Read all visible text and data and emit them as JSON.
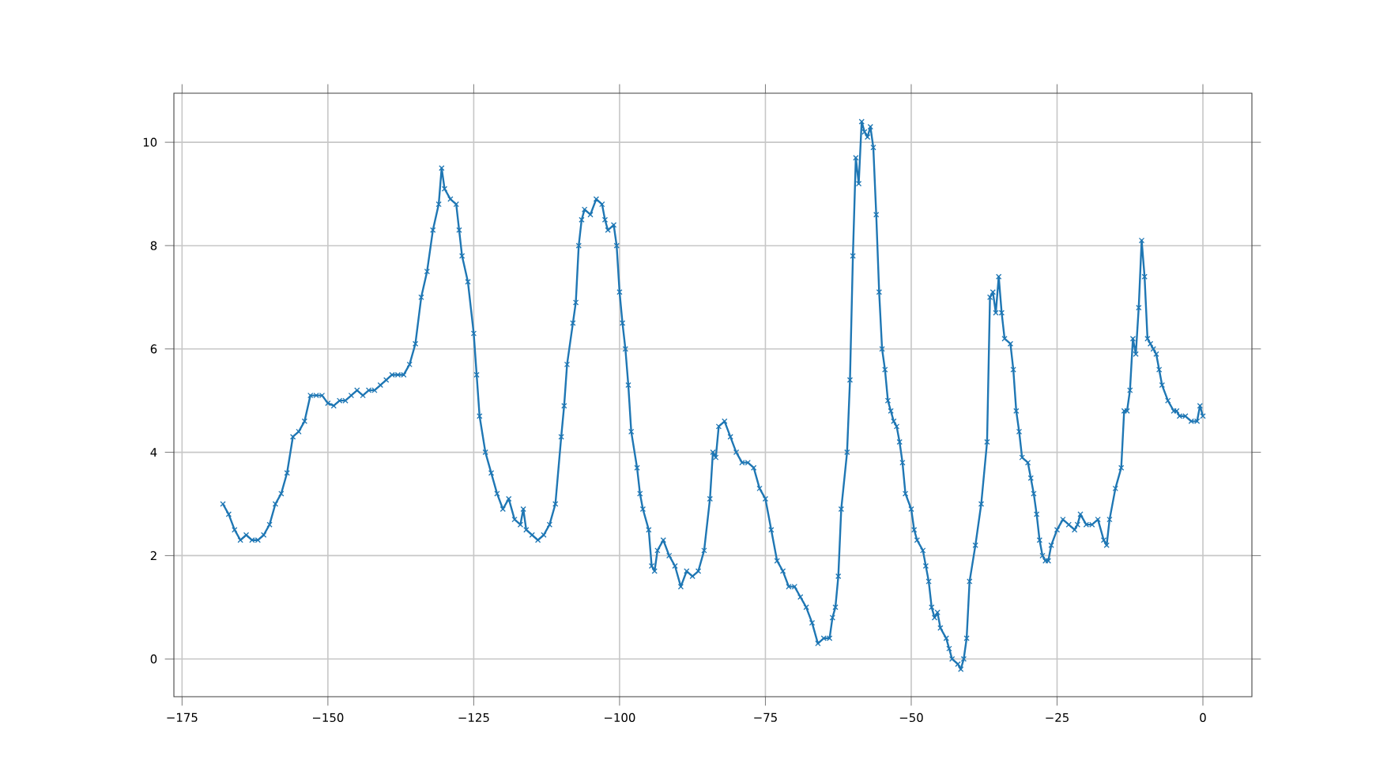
{
  "chart_data": {
    "type": "line",
    "marker": "cross",
    "grid": true,
    "line_style": "solid",
    "xlim": [
      -176.4,
      8.4
    ],
    "ylim": [
      -0.73,
      10.95
    ],
    "xticks": [
      {
        "value": -175,
        "label": "−175"
      },
      {
        "value": -150,
        "label": "−150"
      },
      {
        "value": -125,
        "label": "−125"
      },
      {
        "value": -100,
        "label": "−100"
      },
      {
        "value": -75,
        "label": "−75"
      },
      {
        "value": -50,
        "label": "−50"
      },
      {
        "value": -25,
        "label": "−25"
      },
      0
    ],
    "yticks": [
      0,
      2,
      4,
      6,
      8,
      10
    ],
    "series": [
      {
        "color": "#1f77b4",
        "x": [
          -168,
          -167,
          -166,
          -165,
          -164,
          -163,
          -162,
          -161,
          -160,
          -159,
          -158,
          -157,
          -156,
          -155,
          -154,
          -153,
          -152,
          -151,
          -150,
          -149,
          -148,
          -147,
          -146,
          -145,
          -144,
          -143,
          -142,
          -141,
          -140,
          -139,
          -138,
          -137,
          -136,
          -135,
          -134,
          -133,
          -132,
          -131,
          -130.5,
          -130,
          -129,
          -128,
          -127.5,
          -127,
          -126,
          -125,
          -124.5,
          -124,
          -123,
          -122,
          -121,
          -120,
          -119,
          -118,
          -117,
          -116.5,
          -116,
          -115,
          -114,
          -113,
          -112,
          -111,
          -110,
          -109.5,
          -109,
          -108,
          -107.5,
          -107,
          -106.5,
          -106,
          -105,
          -104,
          -103,
          -102.5,
          -102,
          -101,
          -100.5,
          -100,
          -99.5,
          -99,
          -98.5,
          -98,
          -97,
          -96.5,
          -96,
          -95,
          -94.5,
          -94,
          -93.5,
          -92.5,
          -91.5,
          -90.5,
          -89.5,
          -88.5,
          -87.5,
          -86.5,
          -85.5,
          -84.5,
          -84,
          -83.5,
          -83,
          -82,
          -81,
          -80,
          -79,
          -78,
          -77,
          -76,
          -75,
          -74,
          -73,
          -72,
          -71,
          -70,
          -69,
          -68,
          -67,
          -66,
          -65,
          -64,
          -63.5,
          -63,
          -62.5,
          -62,
          -61,
          -60.5,
          -60,
          -59.5,
          -59,
          -58.5,
          -58,
          -57.5,
          -57,
          -56.5,
          -56,
          -55.5,
          -55,
          -54.5,
          -54,
          -53.5,
          -53,
          -52.5,
          -52,
          -51.5,
          -51,
          -50,
          -49.5,
          -49,
          -48,
          -47.5,
          -47,
          -46.5,
          -46,
          -45.5,
          -45,
          -44,
          -43.5,
          -43,
          -42,
          -41.5,
          -41,
          -40.5,
          -40,
          -39,
          -38,
          -37,
          -36.5,
          -36,
          -35.5,
          -35,
          -34.5,
          -34,
          -33,
          -32.5,
          -32,
          -31.5,
          -31,
          -30,
          -29.5,
          -29,
          -28.5,
          -28,
          -27.5,
          -27,
          -26.5,
          -26,
          -25,
          -24,
          -23,
          -22,
          -21.5,
          -21,
          -20,
          -19,
          -18,
          -17,
          -16.5,
          -16,
          -15,
          -14,
          -13.5,
          -13,
          -12.5,
          -12,
          -11.5,
          -11,
          -10.5,
          -10,
          -9.5,
          -9,
          -8.5,
          -8,
          -7.5,
          -7,
          -6,
          -5,
          -4.5,
          -4,
          -3,
          -2,
          -1,
          -0.5,
          0
        ],
        "values": [
          3.0,
          2.8,
          2.5,
          2.3,
          2.4,
          2.3,
          2.3,
          2.4,
          2.6,
          3.0,
          3.2,
          3.6,
          4.3,
          4.4,
          4.6,
          5.1,
          5.1,
          5.1,
          4.95,
          4.9,
          5.0,
          5.0,
          5.1,
          5.2,
          5.1,
          5.2,
          5.2,
          5.3,
          5.4,
          5.5,
          5.5,
          5.5,
          5.7,
          6.1,
          7.0,
          7.5,
          8.3,
          8.8,
          9.5,
          9.1,
          8.9,
          8.8,
          8.3,
          7.8,
          7.3,
          6.3,
          5.5,
          4.7,
          4.0,
          3.6,
          3.2,
          2.9,
          3.1,
          2.7,
          2.6,
          2.9,
          2.5,
          2.4,
          2.3,
          2.4,
          2.6,
          3.0,
          4.3,
          4.9,
          5.7,
          6.5,
          6.9,
          8.0,
          8.5,
          8.7,
          8.6,
          8.9,
          8.8,
          8.5,
          8.3,
          8.4,
          8.0,
          7.1,
          6.5,
          6.0,
          5.3,
          4.4,
          3.7,
          3.2,
          2.9,
          2.5,
          1.8,
          1.7,
          2.1,
          2.3,
          2.0,
          1.8,
          1.4,
          1.7,
          1.6,
          1.7,
          2.1,
          3.1,
          4.0,
          3.9,
          4.5,
          4.6,
          4.3,
          4.0,
          3.8,
          3.8,
          3.7,
          3.3,
          3.1,
          2.5,
          1.9,
          1.7,
          1.4,
          1.4,
          1.2,
          1.0,
          0.7,
          0.3,
          0.4,
          0.4,
          0.8,
          1.0,
          1.6,
          2.9,
          4.0,
          5.4,
          7.8,
          9.7,
          9.2,
          10.4,
          10.2,
          10.1,
          10.3,
          9.9,
          8.6,
          7.1,
          6.0,
          5.6,
          5.0,
          4.8,
          4.6,
          4.5,
          4.2,
          3.8,
          3.2,
          2.9,
          2.5,
          2.3,
          2.1,
          1.8,
          1.5,
          1.0,
          0.8,
          0.9,
          0.6,
          0.4,
          0.2,
          0.0,
          -0.1,
          -0.2,
          0.0,
          0.4,
          1.5,
          2.2,
          3.0,
          4.2,
          7.0,
          7.1,
          6.7,
          7.4,
          6.7,
          6.2,
          6.1,
          5.6,
          4.8,
          4.4,
          3.9,
          3.8,
          3.5,
          3.2,
          2.8,
          2.3,
          2.0,
          1.9,
          1.9,
          2.2,
          2.5,
          2.7,
          2.6,
          2.5,
          2.6,
          2.8,
          2.6,
          2.6,
          2.7,
          2.3,
          2.2,
          2.7,
          3.3,
          3.7,
          4.8,
          4.8,
          5.2,
          6.2,
          5.9,
          6.8,
          8.1,
          7.4,
          6.2,
          6.1,
          6.0,
          5.9,
          5.6,
          5.3,
          5.0,
          4.8,
          4.8,
          4.7,
          4.7,
          4.6,
          4.6,
          4.9,
          4.7
        ]
      }
    ]
  }
}
